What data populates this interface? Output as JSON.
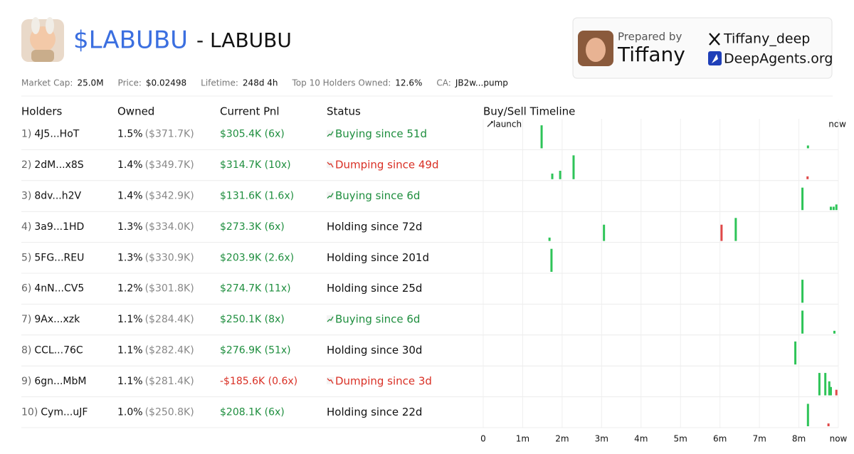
{
  "header": {
    "ticker": "$LABUBU",
    "name": "- LABUBU"
  },
  "card": {
    "prepared_by": "Prepared by",
    "author": "Tiffany",
    "twitter": "Tiffany_deep",
    "site": "DeepAgents.org"
  },
  "stats": [
    {
      "label": "Market Cap:",
      "value": "25.0M"
    },
    {
      "label": "Price:",
      "value": "$0.02498"
    },
    {
      "label": "Lifetime:",
      "value": "248d 4h"
    },
    {
      "label": "Top 10 Holders Owned:",
      "value": "12.6%"
    },
    {
      "label": "CA:",
      "value": "JB2w...pump"
    }
  ],
  "table": {
    "columns": [
      "Holders",
      "Owned",
      "Current Pnl",
      "Status"
    ],
    "rows": [
      {
        "rank": "1)",
        "holder": "4J5...HoT",
        "owned": "1.5%",
        "owned_usd": "($371.7K)",
        "pnl": "$305.4K (6x)",
        "pnl_color": "#1e8e3e",
        "status": "Buying since 51d",
        "status_color": "#1e8e3e",
        "trend": "up",
        "trades": [
          {
            "t": 1.48,
            "size": 0.82,
            "side": "buy"
          },
          {
            "t": 8.23,
            "size": 0.1,
            "side": "buy"
          }
        ]
      },
      {
        "rank": "2)",
        "holder": "2dM...x8S",
        "owned": "1.4%",
        "owned_usd": "($349.7K)",
        "pnl": "$314.7K (10x)",
        "pnl_color": "#1e8e3e",
        "status": "Dumping since 49d",
        "status_color": "#d93025",
        "trend": "down",
        "trades": [
          {
            "t": 1.75,
            "size": 0.2,
            "side": "buy"
          },
          {
            "t": 1.95,
            "size": 0.3,
            "side": "buy"
          },
          {
            "t": 2.29,
            "size": 0.85,
            "side": "buy"
          },
          {
            "t": 8.22,
            "size": 0.1,
            "side": "sell"
          }
        ]
      },
      {
        "rank": "3)",
        "holder": "8dv...h2V",
        "owned": "1.4%",
        "owned_usd": "($342.9K)",
        "pnl": "$131.6K (1.6x)",
        "pnl_color": "#1e8e3e",
        "status": "Buying since 6d",
        "status_color": "#1e8e3e",
        "trend": "up",
        "trades": [
          {
            "t": 8.09,
            "size": 0.8,
            "side": "buy"
          },
          {
            "t": 8.81,
            "size": 0.12,
            "side": "buy"
          },
          {
            "t": 8.88,
            "size": 0.12,
            "side": "buy"
          },
          {
            "t": 8.95,
            "size": 0.2,
            "side": "buy"
          }
        ]
      },
      {
        "rank": "4)",
        "holder": "3a9...1HD",
        "owned": "1.3%",
        "owned_usd": "($334.0K)",
        "pnl": "$273.3K (6x)",
        "pnl_color": "#1e8e3e",
        "status": "Holding since 72d",
        "status_color": "#111111",
        "trades": [
          {
            "t": 1.68,
            "size": 0.12,
            "side": "buy"
          },
          {
            "t": 3.06,
            "size": 0.58,
            "side": "buy"
          },
          {
            "t": 6.04,
            "size": 0.58,
            "side": "sell"
          },
          {
            "t": 6.4,
            "size": 0.82,
            "side": "buy"
          }
        ]
      },
      {
        "rank": "5)",
        "holder": "5FG...REU",
        "owned": "1.3%",
        "owned_usd": "($330.9K)",
        "pnl": "$203.9K (2.6x)",
        "pnl_color": "#1e8e3e",
        "status": "Holding since 201d",
        "status_color": "#111111",
        "trades": [
          {
            "t": 1.73,
            "size": 0.82,
            "side": "buy"
          }
        ]
      },
      {
        "rank": "6)",
        "holder": "4nN...CV5",
        "owned": "1.2%",
        "owned_usd": "($301.8K)",
        "pnl": "$274.7K (11x)",
        "pnl_color": "#1e8e3e",
        "status": "Holding since 25d",
        "status_color": "#111111",
        "trades": [
          {
            "t": 8.09,
            "size": 0.82,
            "side": "buy"
          }
        ]
      },
      {
        "rank": "7)",
        "holder": "9Ax...xzk",
        "owned": "1.1%",
        "owned_usd": "($284.4K)",
        "pnl": "$250.1K (8x)",
        "pnl_color": "#1e8e3e",
        "status": "Buying since 6d",
        "status_color": "#1e8e3e",
        "trend": "up",
        "trades": [
          {
            "t": 8.09,
            "size": 0.82,
            "side": "buy"
          },
          {
            "t": 8.9,
            "size": 0.1,
            "side": "buy"
          }
        ]
      },
      {
        "rank": "8)",
        "holder": "CCL...76C",
        "owned": "1.1%",
        "owned_usd": "($282.4K)",
        "pnl": "$276.9K (51x)",
        "pnl_color": "#1e8e3e",
        "status": "Holding since 30d",
        "status_color": "#111111",
        "trades": [
          {
            "t": 7.91,
            "size": 0.82,
            "side": "buy"
          }
        ]
      },
      {
        "rank": "9)",
        "holder": "6gn...MbM",
        "owned": "1.1%",
        "owned_usd": "($281.4K)",
        "pnl": "-$185.6K (0.6x)",
        "pnl_color": "#d93025",
        "status": "Dumping since 3d",
        "status_color": "#d93025",
        "trend": "down",
        "trades": [
          {
            "t": 8.52,
            "size": 0.8,
            "side": "buy"
          },
          {
            "t": 8.67,
            "size": 0.8,
            "side": "buy"
          },
          {
            "t": 8.77,
            "size": 0.5,
            "side": "buy"
          },
          {
            "t": 8.81,
            "size": 0.3,
            "side": "buy"
          },
          {
            "t": 8.95,
            "size": 0.2,
            "side": "sell"
          }
        ]
      },
      {
        "rank": "10)",
        "holder": "Cym...uJF",
        "owned": "1.0%",
        "owned_usd": "($250.8K)",
        "pnl": "$208.1K (6x)",
        "pnl_color": "#1e8e3e",
        "status": "Holding since 22d",
        "status_color": "#111111",
        "trades": [
          {
            "t": 8.23,
            "size": 0.8,
            "side": "buy"
          },
          {
            "t": 8.75,
            "size": 0.1,
            "side": "sell"
          }
        ]
      }
    ]
  },
  "timeline": {
    "title": "Buy/Sell Timeline",
    "start_label": "launch",
    "end_label": "now",
    "xlim": [
      0,
      9
    ],
    "xticks": [
      0,
      {
        "value": 1,
        "label": "1m"
      },
      {
        "value": 2,
        "label": "2m"
      },
      {
        "value": 3,
        "label": "3m"
      },
      {
        "value": 4,
        "label": "4m"
      },
      {
        "value": 5,
        "label": "5m"
      },
      {
        "value": 6,
        "label": "6m"
      },
      {
        "value": 7,
        "label": "7m"
      },
      {
        "value": 8,
        "label": "8m"
      },
      {
        "value": 9,
        "label": "now"
      }
    ],
    "buy_color": "#2ec458",
    "sell_color": "#e04848"
  }
}
